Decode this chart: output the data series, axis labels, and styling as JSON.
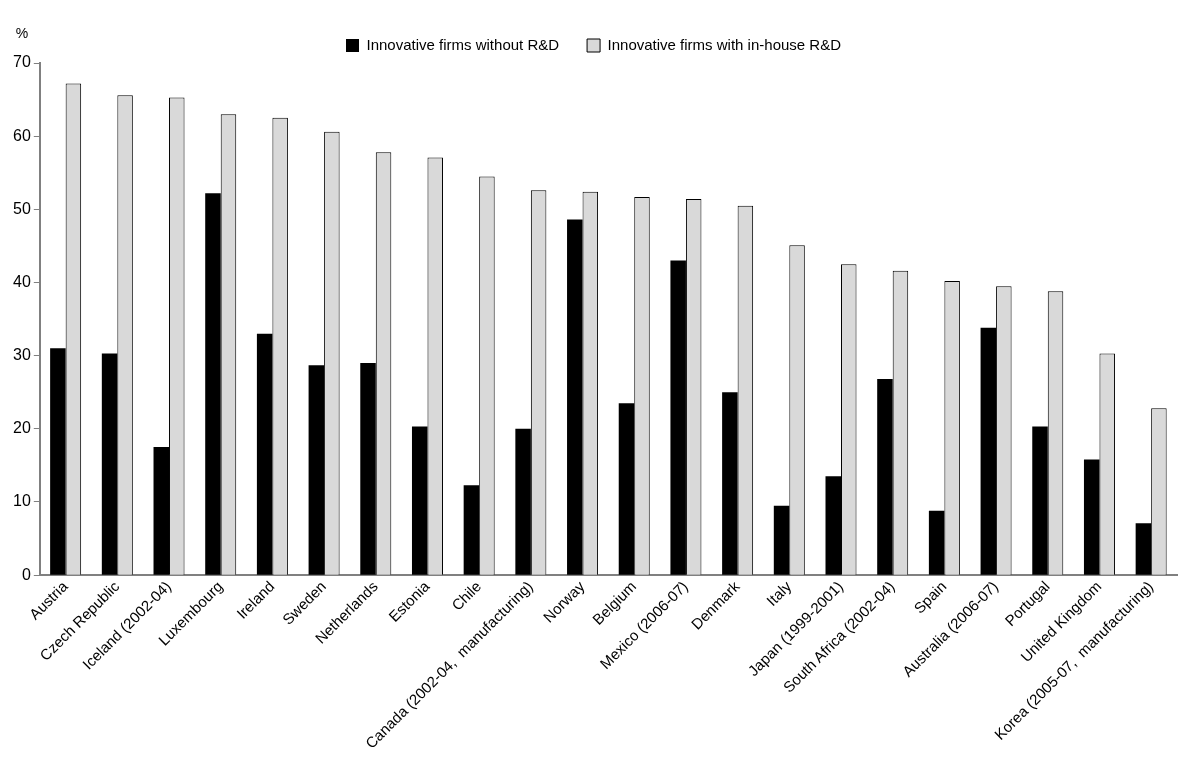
{
  "chart_data": {
    "type": "bar",
    "ylabel": "%",
    "categories": [
      "Austria",
      "Czech Republic",
      "Iceland (2002-04)",
      "Luxembourg",
      "Ireland",
      "Sweden",
      "Netherlands",
      "Estonia",
      "Chile",
      "Canada (2002-04,  manufacturing)",
      "Norway",
      "Belgium",
      "Mexico (2006-07)",
      "Denmark",
      "Italy",
      "Japan (1999-2001)",
      "South Africa (2002-04)",
      "Spain",
      "Australia (2006-07)",
      "Portugal",
      "United Kingdom",
      "Korea (2005-07,  manufacturing)"
    ],
    "series": [
      {
        "name": "Innovative firms without R&D",
        "color": "#000000",
        "values": [
          31,
          30.3,
          17.5,
          52.2,
          33,
          28.7,
          29,
          20.3,
          12.3,
          20,
          48.6,
          23.5,
          43,
          25,
          9.5,
          13.5,
          26.8,
          8.8,
          33.8,
          20.3,
          15.8,
          7.1
        ]
      },
      {
        "name": "Innovative firms with in-house R&D",
        "color": "#d9d9d9",
        "values": [
          67.2,
          65.6,
          65.3,
          63,
          62.5,
          60.6,
          57.8,
          57.1,
          54.5,
          52.6,
          52.4,
          51.7,
          51.4,
          50.5,
          45.1,
          42.5,
          41.6,
          40.2,
          39.5,
          38.8,
          30.3,
          22.8
        ]
      }
    ],
    "ylim": [
      0,
      70
    ],
    "yticks": [
      0,
      10,
      20,
      30,
      40,
      50,
      60,
      70
    ],
    "grid": false,
    "legend": "top"
  }
}
